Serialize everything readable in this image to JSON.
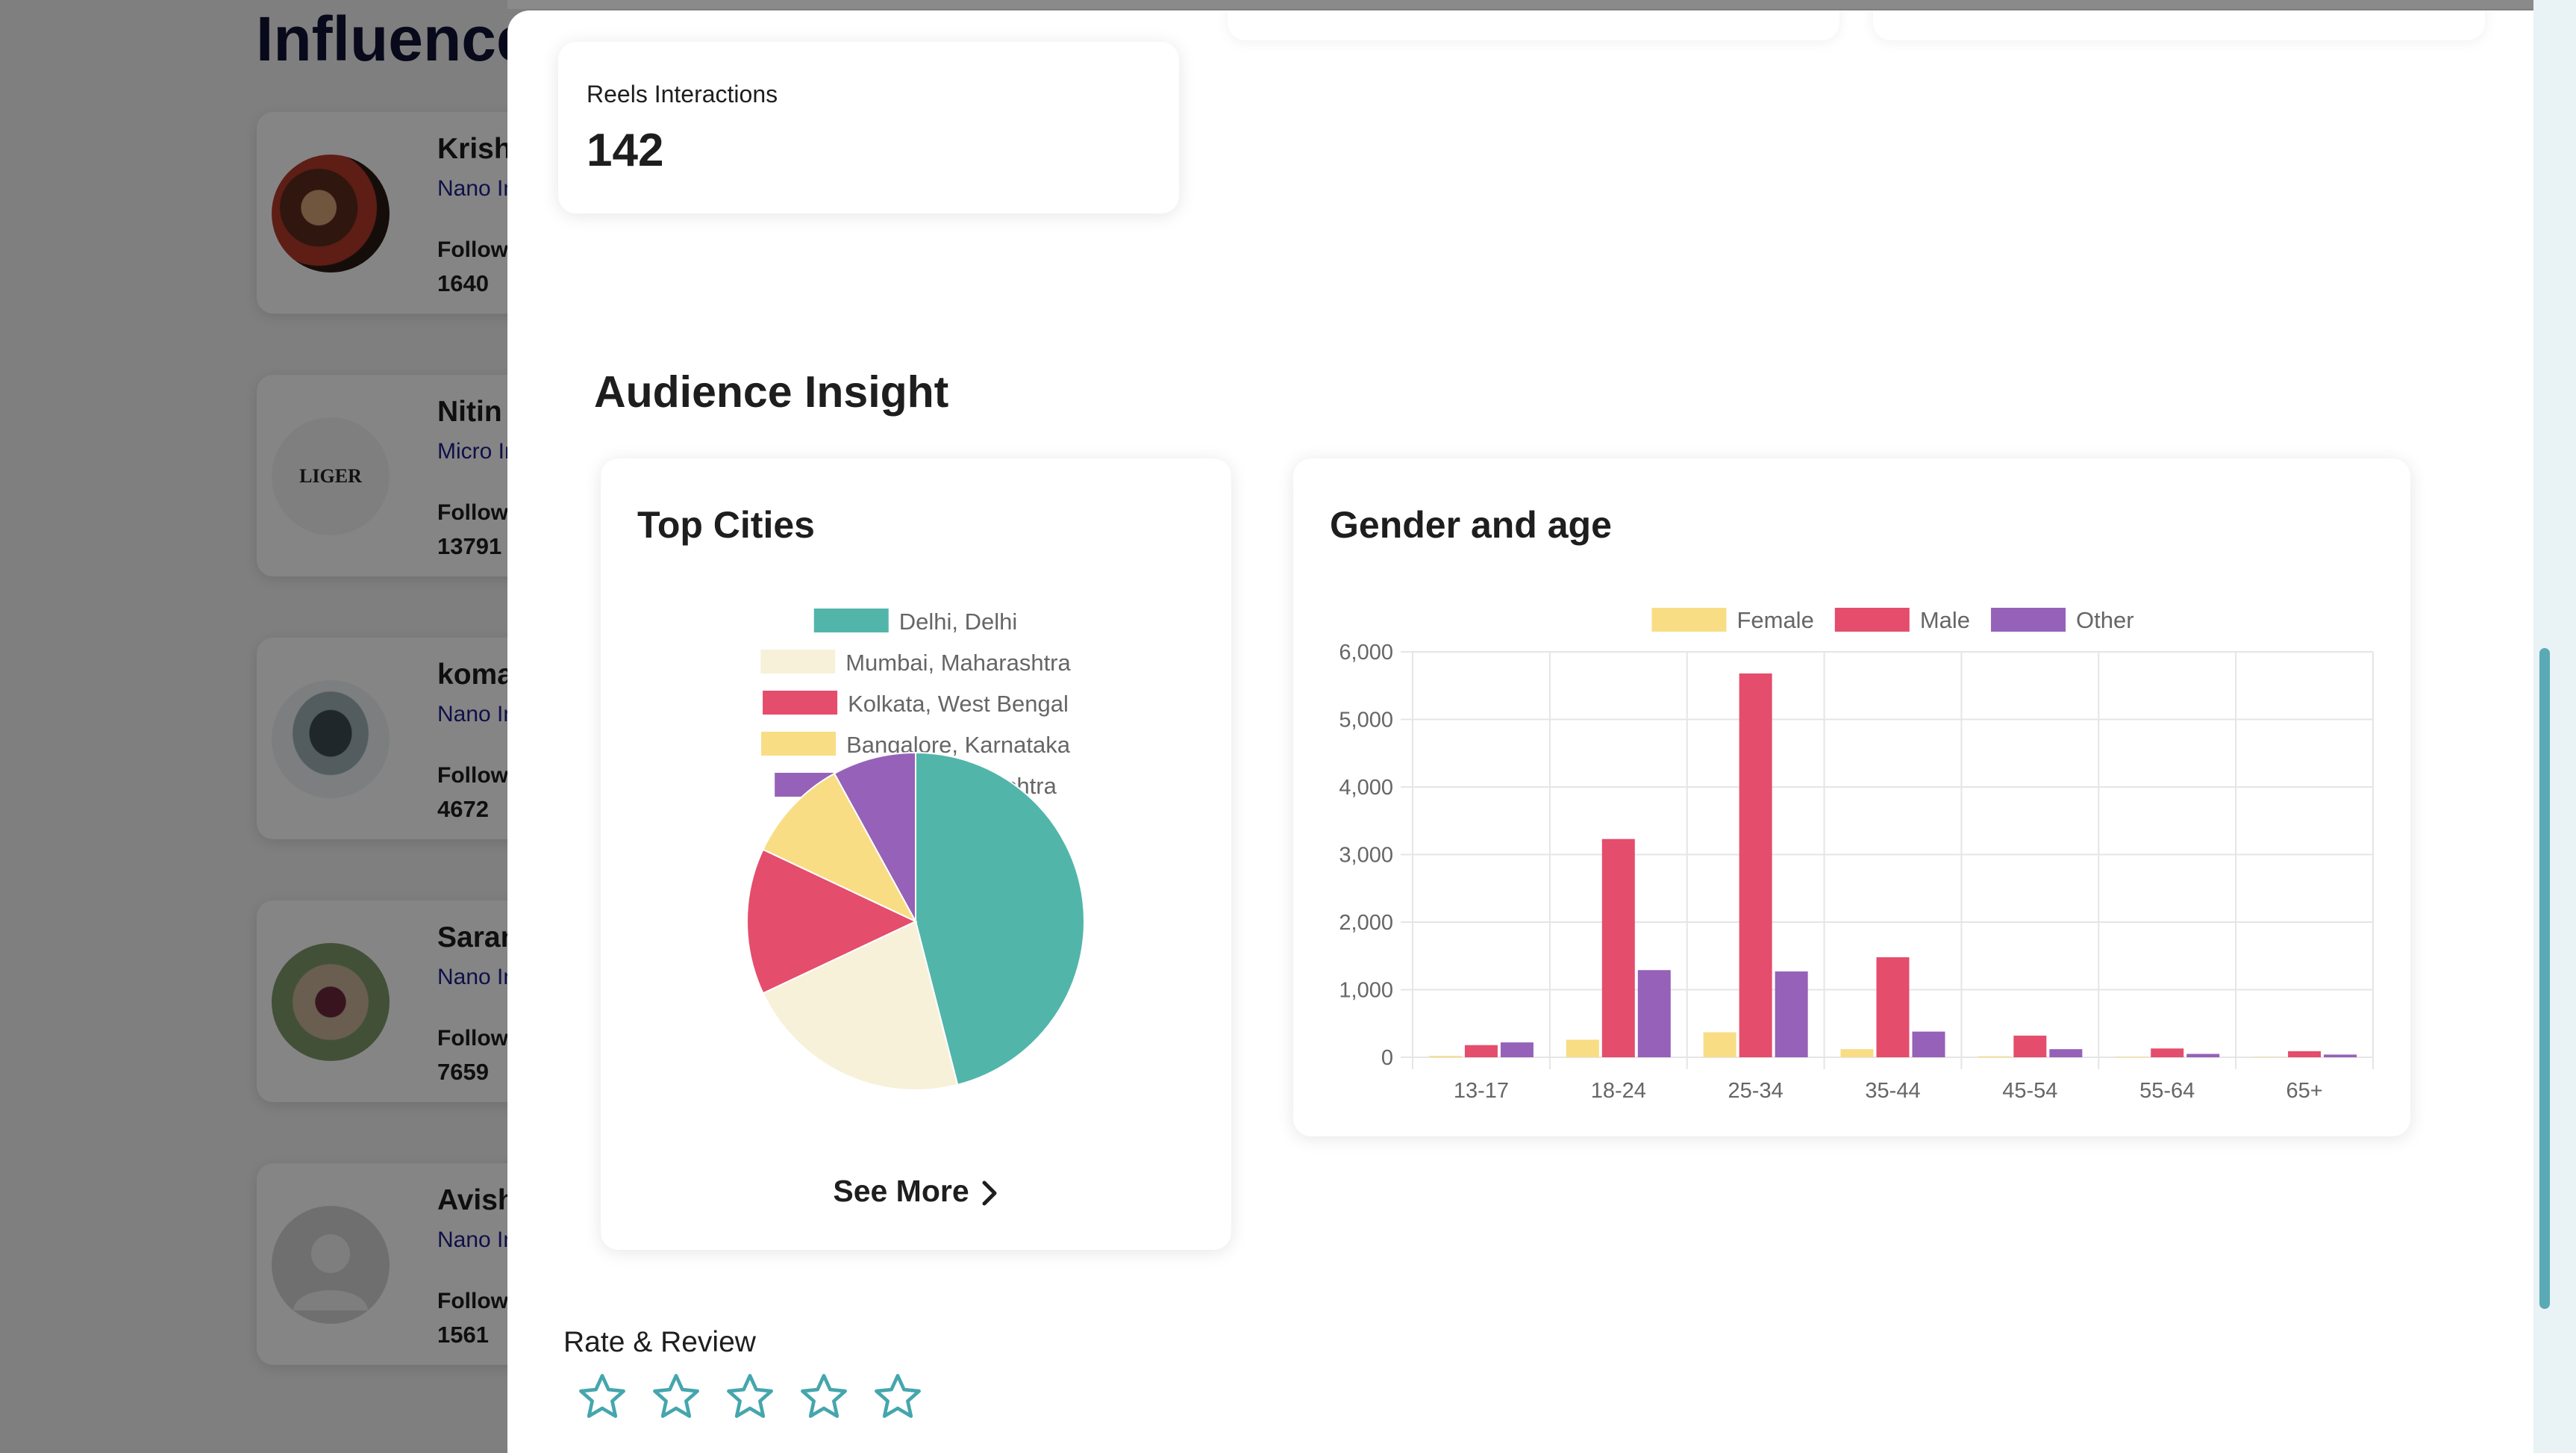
{
  "background": {
    "page_title": "Influencers",
    "influencers": [
      {
        "name": "Krishna",
        "tier": "Nano Influencer",
        "followers_label": "Followers",
        "followers": "1640"
      },
      {
        "name": "Nitin",
        "tier": "Micro Influencer",
        "followers_label": "Followers",
        "followers": "13791",
        "avatar_text": "LIGER"
      },
      {
        "name": "komal",
        "tier": "Nano Influencer",
        "followers_label": "Followers",
        "followers": "4672"
      },
      {
        "name": "Sarans",
        "tier": "Nano Influencer",
        "followers_label": "Followers",
        "followers": "7659"
      },
      {
        "name": "Avish",
        "tier": "Nano Influencer",
        "followers_label": "Followers",
        "followers": "1561"
      }
    ]
  },
  "modal": {
    "reels": {
      "label": "Reels Interactions",
      "value": "142"
    },
    "audience_heading": "Audience Insight",
    "top_cities": {
      "title": "Top Cities",
      "see_more": "See More"
    },
    "gender_age": {
      "title": "Gender and age"
    },
    "rate_review": {
      "label": "Rate & Review",
      "stars_total": 5,
      "stars_selected": 0
    }
  },
  "colors": {
    "teal": "#52b5aa",
    "cream": "#f7f1d9",
    "red": "#e44d6c",
    "yellow": "#f8dd85",
    "purple": "#9661b8",
    "star_outline": "#45a6ad"
  },
  "chart_data": [
    {
      "type": "pie",
      "title": "Top Cities",
      "labels": [
        "Delhi, Delhi",
        "Mumbai, Maharashtra",
        "Kolkata, West Bengal",
        "Bangalore, Karnataka",
        "Pune, Maharashtra"
      ],
      "values": [
        46,
        22,
        14,
        10,
        8
      ],
      "colors": [
        "#52b5aa",
        "#f7f1d9",
        "#e44d6c",
        "#f8dd85",
        "#9661b8"
      ],
      "legend": "top"
    },
    {
      "type": "bar",
      "title": "Gender and age",
      "categories": [
        "13-17",
        "18-24",
        "25-34",
        "35-44",
        "45-54",
        "55-64",
        "65+"
      ],
      "series": [
        {
          "name": "Female",
          "color": "#f8dd85",
          "values": [
            20,
            260,
            370,
            120,
            15,
            10,
            5
          ]
        },
        {
          "name": "Male",
          "color": "#e44d6c",
          "values": [
            180,
            3230,
            5680,
            1480,
            320,
            130,
            90
          ]
        },
        {
          "name": "Other",
          "color": "#9661b8",
          "values": [
            220,
            1290,
            1270,
            380,
            120,
            50,
            40
          ]
        }
      ],
      "ylim": [
        0,
        6000
      ],
      "yticks": [
        0,
        1000,
        2000,
        3000,
        4000,
        5000,
        6000
      ],
      "ytick_labels": [
        "0",
        "1,000",
        "2,000",
        "3,000",
        "4,000",
        "5,000",
        "6,000"
      ],
      "grid": true,
      "legend": "top"
    }
  ]
}
